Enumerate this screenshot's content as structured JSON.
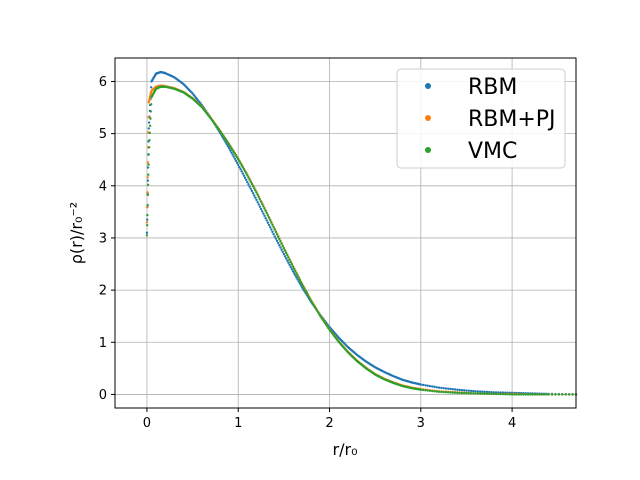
{
  "chart_data": {
    "type": "scatter",
    "xlabel": "r/r₀",
    "ylabel": "ρ(r)/r₀⁻²",
    "xlim": [
      -0.35,
      4.7
    ],
    "ylim": [
      -0.26,
      6.45
    ],
    "grid": true,
    "legend_placement": "top-right",
    "x_ticks": [
      0,
      1,
      2,
      3,
      4
    ],
    "x_tick_labels": [
      "0",
      "1",
      "2",
      "3",
      "4"
    ],
    "y_ticks": [
      0,
      1,
      2,
      3,
      4,
      5,
      6
    ],
    "y_tick_labels": [
      "0",
      "1",
      "2",
      "3",
      "4",
      "5",
      "6"
    ],
    "series": [
      {
        "name": "RBM",
        "color": "#1f77b4",
        "x": [
          0.0,
          0.02,
          0.05,
          0.1,
          0.15,
          0.2,
          0.3,
          0.4,
          0.5,
          0.6,
          0.7,
          0.8,
          0.9,
          1.0,
          1.1,
          1.2,
          1.3,
          1.4,
          1.5,
          1.6,
          1.7,
          1.8,
          1.9,
          2.0,
          2.1,
          2.2,
          2.3,
          2.4,
          2.5,
          2.6,
          2.7,
          2.8,
          2.9,
          3.0,
          3.2,
          3.4,
          3.6,
          3.8,
          4.0,
          4.2,
          4.4,
          4.7
        ],
        "y": [
          3.1,
          5.1,
          6.0,
          6.15,
          6.18,
          6.16,
          6.08,
          5.95,
          5.77,
          5.55,
          5.3,
          5.02,
          4.72,
          4.4,
          4.07,
          3.73,
          3.38,
          3.03,
          2.69,
          2.36,
          2.05,
          1.77,
          1.52,
          1.29,
          1.09,
          0.91,
          0.76,
          0.63,
          0.52,
          0.43,
          0.35,
          0.28,
          0.23,
          0.19,
          0.13,
          0.09,
          0.06,
          0.04,
          0.03,
          0.02,
          0.01,
          0.0
        ]
      },
      {
        "name": "RBM+PJ",
        "color": "#ff7f0e",
        "x": [
          0.0,
          0.02,
          0.05,
          0.1,
          0.15,
          0.2,
          0.3,
          0.4,
          0.5,
          0.6,
          0.7,
          0.8,
          0.9,
          1.0,
          1.1,
          1.2,
          1.3,
          1.4,
          1.5,
          1.6,
          1.7,
          1.8,
          1.9,
          2.0,
          2.1,
          2.2,
          2.3,
          2.4,
          2.5,
          2.6,
          2.7,
          2.8,
          2.9,
          3.0,
          3.2,
          3.4,
          3.6,
          3.8,
          4.0,
          4.2,
          4.4,
          4.7
        ],
        "y": [
          3.3,
          5.6,
          5.82,
          5.9,
          5.92,
          5.91,
          5.87,
          5.8,
          5.68,
          5.52,
          5.3,
          5.06,
          4.8,
          4.52,
          4.21,
          3.88,
          3.53,
          3.17,
          2.81,
          2.46,
          2.12,
          1.8,
          1.51,
          1.25,
          1.02,
          0.82,
          0.65,
          0.51,
          0.39,
          0.3,
          0.23,
          0.17,
          0.13,
          0.1,
          0.06,
          0.04,
          0.02,
          0.01,
          0.01,
          0.0,
          0.0,
          0.0
        ]
      },
      {
        "name": "VMC",
        "color": "#2ca02c",
        "x": [
          0.0,
          0.02,
          0.05,
          0.1,
          0.15,
          0.2,
          0.3,
          0.4,
          0.5,
          0.6,
          0.7,
          0.8,
          0.9,
          1.0,
          1.1,
          1.2,
          1.3,
          1.4,
          1.5,
          1.6,
          1.7,
          1.8,
          1.9,
          2.0,
          2.1,
          2.2,
          2.3,
          2.4,
          2.5,
          2.6,
          2.7,
          2.8,
          2.9,
          3.0,
          3.2,
          3.4,
          3.6,
          3.8,
          4.0,
          4.2,
          4.4,
          4.7
        ],
        "y": [
          3.05,
          4.6,
          5.7,
          5.86,
          5.9,
          5.9,
          5.86,
          5.79,
          5.67,
          5.51,
          5.29,
          5.05,
          4.79,
          4.51,
          4.2,
          3.87,
          3.52,
          3.16,
          2.8,
          2.45,
          2.11,
          1.79,
          1.5,
          1.24,
          1.01,
          0.81,
          0.64,
          0.5,
          0.38,
          0.29,
          0.22,
          0.16,
          0.12,
          0.09,
          0.05,
          0.03,
          0.02,
          0.01,
          0.0,
          0.0,
          0.0,
          0.0
        ]
      }
    ]
  }
}
